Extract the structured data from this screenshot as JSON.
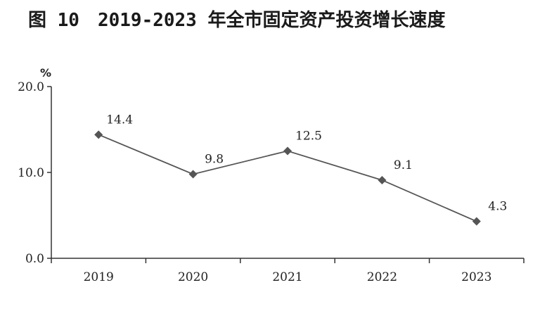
{
  "chart_data": {
    "type": "line",
    "title": "图 10　2019-2023 年全市固定资产投资增长速度",
    "ylabel": "%",
    "xlabel": "",
    "categories": [
      "2019",
      "2020",
      "2021",
      "2022",
      "2023"
    ],
    "series": [
      {
        "values": [
          14.4,
          9.8,
          12.5,
          9.1,
          4.3
        ]
      }
    ],
    "data_labels": [
      "14.4",
      "9.8",
      "12.5",
      "9.1",
      "4.3"
    ],
    "y_ticks": [
      "0.0",
      "10.0",
      "20.0"
    ],
    "ylim": [
      0,
      20
    ],
    "grid": false,
    "legend": "none",
    "colors": {
      "line": "#555555",
      "marker": "#555555",
      "axis": "#333333"
    }
  }
}
